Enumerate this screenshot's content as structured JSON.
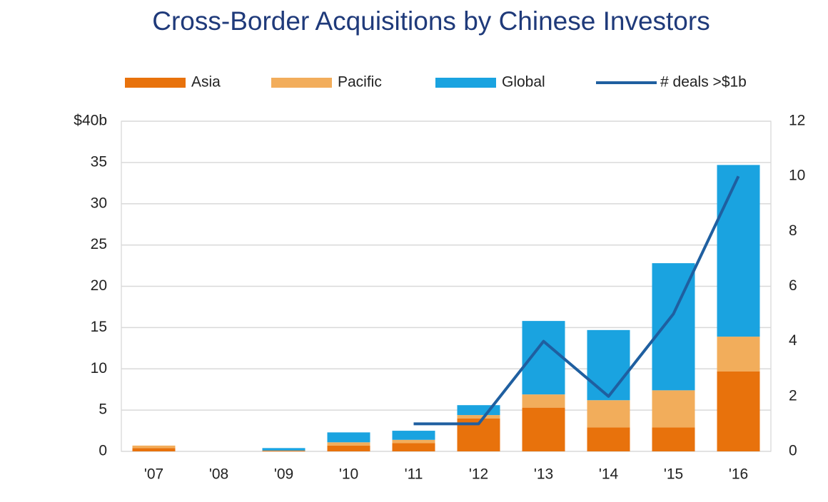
{
  "chart_data": {
    "type": "bar",
    "stacked": true,
    "title": "Cross-Border Acquisitions by Chinese Investors",
    "categories": [
      "'07",
      "'08",
      "'09",
      "'10",
      "'11",
      "'12",
      "'13",
      "'14",
      "'15",
      "'16"
    ],
    "series": [
      {
        "name": "Asia",
        "color": "#e8720c",
        "values": [
          0.4,
          0,
          0.1,
          0.7,
          1.0,
          4.0,
          5.3,
          2.9,
          2.9,
          9.7
        ]
      },
      {
        "name": "Pacific",
        "color": "#f2ad5b",
        "values": [
          0.3,
          0,
          0,
          0.4,
          0.4,
          0.4,
          1.6,
          3.3,
          4.5,
          4.2
        ]
      },
      {
        "name": "Global",
        "color": "#1aa3e0",
        "values": [
          0,
          0,
          0.3,
          1.2,
          1.1,
          1.2,
          8.9,
          8.5,
          15.4,
          20.8
        ]
      },
      {
        "name": "# deals >$1b",
        "color": "#1f5fa0",
        "type": "line",
        "axis": "y2",
        "values": [
          null,
          null,
          null,
          null,
          1,
          1,
          4,
          2,
          5,
          10
        ]
      }
    ],
    "ylim": [
      0,
      40
    ],
    "yticks": [
      0,
      5,
      10,
      15,
      20,
      25,
      30,
      35,
      {
        "value": 40,
        "label": "$40b"
      }
    ],
    "y2lim": [
      0,
      12
    ],
    "y2ticks": [
      0,
      2,
      4,
      6,
      8,
      10,
      12
    ],
    "grid": true,
    "legend": "top"
  }
}
